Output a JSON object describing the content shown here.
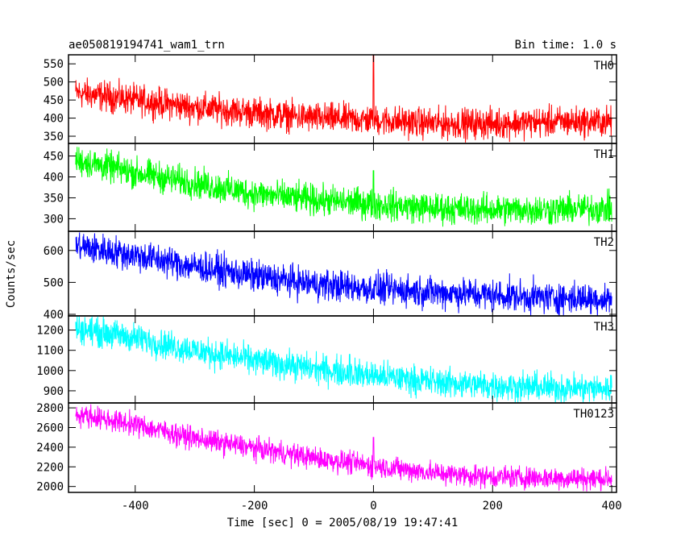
{
  "chart_data": {
    "type": "line",
    "title": "ae050819194741_wam1_trn",
    "subtitle": "Bin time: 1.0 s",
    "xlabel": "Time [sec] 0 = 2005/08/19 19:47:41",
    "ylabel": "Counts/sec",
    "xlim": [
      -512,
      408
    ],
    "xticks": [
      -400,
      -200,
      0,
      200,
      400
    ],
    "panels": [
      {
        "name": "TH0",
        "color": "#ff0000",
        "ylim": [
          330,
          575
        ],
        "yticks": [
          350,
          400,
          450,
          500,
          550
        ],
        "trend_points": [
          [
            -500,
            470
          ],
          [
            -400,
            450
          ],
          [
            -300,
            430
          ],
          [
            -200,
            415
          ],
          [
            -100,
            400
          ],
          [
            0,
            395
          ],
          [
            100,
            385
          ],
          [
            200,
            385
          ],
          [
            300,
            390
          ],
          [
            400,
            390
          ]
        ],
        "noise": 55,
        "spikes": [
          [
            0,
            575
          ]
        ]
      },
      {
        "name": "TH1",
        "color": "#00ff00",
        "ylim": [
          270,
          480
        ],
        "yticks": [
          300,
          350,
          400,
          450
        ],
        "trend_points": [
          [
            -500,
            440
          ],
          [
            -400,
            410
          ],
          [
            -300,
            385
          ],
          [
            -200,
            360
          ],
          [
            -100,
            345
          ],
          [
            0,
            335
          ],
          [
            100,
            325
          ],
          [
            200,
            322
          ],
          [
            300,
            322
          ],
          [
            400,
            325
          ]
        ],
        "noise": 48,
        "spikes": [
          [
            0,
            415
          ]
        ]
      },
      {
        "name": "TH2",
        "color": "#0000ff",
        "ylim": [
          395,
          660
        ],
        "yticks": [
          400,
          500,
          600
        ],
        "trend_points": [
          [
            -500,
            615
          ],
          [
            -400,
            585
          ],
          [
            -300,
            550
          ],
          [
            -200,
            520
          ],
          [
            -100,
            495
          ],
          [
            0,
            480
          ],
          [
            100,
            470
          ],
          [
            200,
            460
          ],
          [
            300,
            452
          ],
          [
            400,
            448
          ]
        ],
        "noise": 65,
        "spikes": []
      },
      {
        "name": "TH3",
        "color": "#00ffff",
        "ylim": [
          840,
          1270
        ],
        "yticks": [
          900,
          1000,
          1100,
          1200
        ],
        "trend_points": [
          [
            -500,
            1210
          ],
          [
            -400,
            1160
          ],
          [
            -300,
            1100
          ],
          [
            -200,
            1050
          ],
          [
            -100,
            1010
          ],
          [
            0,
            975
          ],
          [
            100,
            945
          ],
          [
            200,
            925
          ],
          [
            300,
            915
          ],
          [
            400,
            910
          ]
        ],
        "noise": 95,
        "spikes": [
          [
            -40,
            1080
          ]
        ]
      },
      {
        "name": "TH0123",
        "color": "#ff00ff",
        "ylim": [
          1940,
          2850
        ],
        "yticks": [
          2000,
          2200,
          2400,
          2600,
          2800
        ],
        "trend_points": [
          [
            -500,
            2740
          ],
          [
            -400,
            2630
          ],
          [
            -300,
            2490
          ],
          [
            -200,
            2390
          ],
          [
            -100,
            2290
          ],
          [
            0,
            2210
          ],
          [
            100,
            2140
          ],
          [
            200,
            2100
          ],
          [
            300,
            2085
          ],
          [
            400,
            2080
          ]
        ],
        "noise": 150,
        "spikes": [
          [
            0,
            2500
          ]
        ]
      }
    ]
  }
}
